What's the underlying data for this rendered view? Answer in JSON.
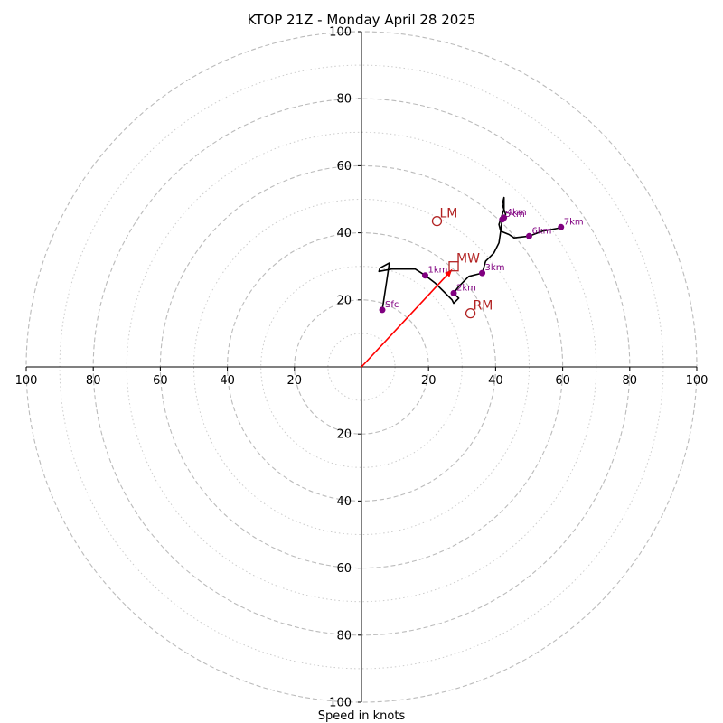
{
  "chart_data": {
    "type": "hodograph",
    "title": "KTOP 21Z - Monday April 28 2025",
    "xlabel": "Speed in knots",
    "range": [
      -100,
      100
    ],
    "rings_major": [
      20,
      40,
      60,
      80,
      100
    ],
    "rings_minor": [
      10,
      30,
      50,
      70,
      90
    ],
    "x_tick_labels": [
      "100",
      "80",
      "60",
      "40",
      "20",
      "20",
      "40",
      "60",
      "80",
      "100"
    ],
    "x_tick_values": [
      -100,
      -80,
      -60,
      -40,
      -20,
      20,
      40,
      60,
      80,
      100
    ],
    "y_tick_labels": [
      "100",
      "80",
      "60",
      "40",
      "20",
      "20",
      "40",
      "60",
      "80",
      "100"
    ],
    "y_tick_values": [
      100,
      80,
      60,
      40,
      20,
      -20,
      -40,
      -60,
      -80,
      -100
    ],
    "profile": [
      [
        6.2,
        17.0
      ],
      [
        7.5,
        25.5
      ],
      [
        8.3,
        31.0
      ],
      [
        5.5,
        29.5
      ],
      [
        5.2,
        28.5
      ],
      [
        9.0,
        29.2
      ],
      [
        16.0,
        29.2
      ],
      [
        19.0,
        27.3
      ],
      [
        22.0,
        25.0
      ],
      [
        24.5,
        22.5
      ],
      [
        27.0,
        20.0
      ],
      [
        27.5,
        19.0
      ],
      [
        29.0,
        20.5
      ],
      [
        27.5,
        22.0
      ],
      [
        29.0,
        24.0
      ],
      [
        32.0,
        27.0
      ],
      [
        36.0,
        28.0
      ],
      [
        37.0,
        31.5
      ],
      [
        39.5,
        34.0
      ],
      [
        41.0,
        37.0
      ],
      [
        41.5,
        40.5
      ],
      [
        42.0,
        44.5
      ],
      [
        42.5,
        44.5
      ],
      [
        43.0,
        45.5
      ],
      [
        42.0,
        48.5
      ],
      [
        42.5,
        50.5
      ],
      [
        42.5,
        47.0
      ],
      [
        41.0,
        42.5
      ],
      [
        41.5,
        40.5
      ],
      [
        44.0,
        39.5
      ],
      [
        45.5,
        38.5
      ],
      [
        50.0,
        39.0
      ],
      [
        54.0,
        40.5
      ],
      [
        59.5,
        41.5
      ]
    ],
    "height_markers": [
      {
        "label": "Sfc",
        "u": 6.2,
        "v": 17.0
      },
      {
        "label": "1km",
        "u": 19.0,
        "v": 27.3
      },
      {
        "label": "2km",
        "u": 27.5,
        "v": 22.0
      },
      {
        "label": "3km",
        "u": 36.0,
        "v": 28.0
      },
      {
        "label": "4km",
        "u": 42.5,
        "v": 44.5
      },
      {
        "label": "5km",
        "u": 42.0,
        "v": 44.0
      },
      {
        "label": "6km",
        "u": 50.0,
        "v": 39.0
      },
      {
        "label": "7km",
        "u": 59.5,
        "v": 41.7
      }
    ],
    "storm_motions": [
      {
        "label": "LM",
        "u": 22.5,
        "v": 43.5,
        "marker": "circle"
      },
      {
        "label": "MW",
        "u": 27.5,
        "v": 30.0,
        "marker": "square"
      },
      {
        "label": "RM",
        "u": 32.5,
        "v": 16.0,
        "marker": "circle"
      }
    ],
    "vector": {
      "from": [
        0,
        0
      ],
      "to": [
        27.0,
        29.0
      ]
    },
    "colors": {
      "profile": "#000000",
      "markers": "#800080",
      "storm_motion": "#b22222",
      "vector": "#ff0000",
      "grid": "#bbbbbb",
      "grid_minor": "#cccccc",
      "axes": "#000000"
    }
  }
}
